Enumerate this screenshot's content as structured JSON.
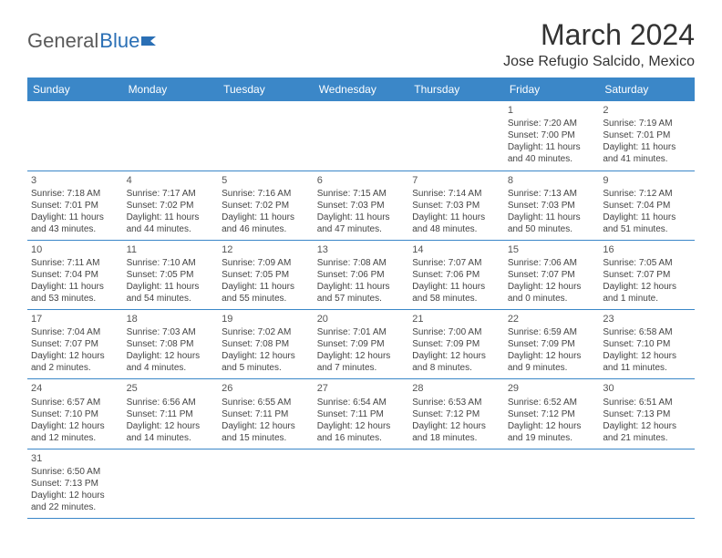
{
  "logo": {
    "first": "General",
    "second": "Blue"
  },
  "title": "March 2024",
  "location": "Jose Refugio Salcido, Mexico",
  "colors": {
    "header_bg": "#3b87c8",
    "header_fg": "#ffffff",
    "rule": "#3b87c8",
    "text": "#444444",
    "logo_blue": "#2a6fb5",
    "logo_gray": "#5a5a5a"
  },
  "weekdays": [
    "Sunday",
    "Monday",
    "Tuesday",
    "Wednesday",
    "Thursday",
    "Friday",
    "Saturday"
  ],
  "weeks": [
    [
      null,
      null,
      null,
      null,
      null,
      {
        "d": "1",
        "sr": "7:20 AM",
        "ss": "7:00 PM",
        "dl1": "11 hours",
        "dl2": "and 40 minutes."
      },
      {
        "d": "2",
        "sr": "7:19 AM",
        "ss": "7:01 PM",
        "dl1": "11 hours",
        "dl2": "and 41 minutes."
      }
    ],
    [
      {
        "d": "3",
        "sr": "7:18 AM",
        "ss": "7:01 PM",
        "dl1": "11 hours",
        "dl2": "and 43 minutes."
      },
      {
        "d": "4",
        "sr": "7:17 AM",
        "ss": "7:02 PM",
        "dl1": "11 hours",
        "dl2": "and 44 minutes."
      },
      {
        "d": "5",
        "sr": "7:16 AM",
        "ss": "7:02 PM",
        "dl1": "11 hours",
        "dl2": "and 46 minutes."
      },
      {
        "d": "6",
        "sr": "7:15 AM",
        "ss": "7:03 PM",
        "dl1": "11 hours",
        "dl2": "and 47 minutes."
      },
      {
        "d": "7",
        "sr": "7:14 AM",
        "ss": "7:03 PM",
        "dl1": "11 hours",
        "dl2": "and 48 minutes."
      },
      {
        "d": "8",
        "sr": "7:13 AM",
        "ss": "7:03 PM",
        "dl1": "11 hours",
        "dl2": "and 50 minutes."
      },
      {
        "d": "9",
        "sr": "7:12 AM",
        "ss": "7:04 PM",
        "dl1": "11 hours",
        "dl2": "and 51 minutes."
      }
    ],
    [
      {
        "d": "10",
        "sr": "7:11 AM",
        "ss": "7:04 PM",
        "dl1": "11 hours",
        "dl2": "and 53 minutes."
      },
      {
        "d": "11",
        "sr": "7:10 AM",
        "ss": "7:05 PM",
        "dl1": "11 hours",
        "dl2": "and 54 minutes."
      },
      {
        "d": "12",
        "sr": "7:09 AM",
        "ss": "7:05 PM",
        "dl1": "11 hours",
        "dl2": "and 55 minutes."
      },
      {
        "d": "13",
        "sr": "7:08 AM",
        "ss": "7:06 PM",
        "dl1": "11 hours",
        "dl2": "and 57 minutes."
      },
      {
        "d": "14",
        "sr": "7:07 AM",
        "ss": "7:06 PM",
        "dl1": "11 hours",
        "dl2": "and 58 minutes."
      },
      {
        "d": "15",
        "sr": "7:06 AM",
        "ss": "7:07 PM",
        "dl1": "12 hours",
        "dl2": "and 0 minutes."
      },
      {
        "d": "16",
        "sr": "7:05 AM",
        "ss": "7:07 PM",
        "dl1": "12 hours",
        "dl2": "and 1 minute."
      }
    ],
    [
      {
        "d": "17",
        "sr": "7:04 AM",
        "ss": "7:07 PM",
        "dl1": "12 hours",
        "dl2": "and 2 minutes."
      },
      {
        "d": "18",
        "sr": "7:03 AM",
        "ss": "7:08 PM",
        "dl1": "12 hours",
        "dl2": "and 4 minutes."
      },
      {
        "d": "19",
        "sr": "7:02 AM",
        "ss": "7:08 PM",
        "dl1": "12 hours",
        "dl2": "and 5 minutes."
      },
      {
        "d": "20",
        "sr": "7:01 AM",
        "ss": "7:09 PM",
        "dl1": "12 hours",
        "dl2": "and 7 minutes."
      },
      {
        "d": "21",
        "sr": "7:00 AM",
        "ss": "7:09 PM",
        "dl1": "12 hours",
        "dl2": "and 8 minutes."
      },
      {
        "d": "22",
        "sr": "6:59 AM",
        "ss": "7:09 PM",
        "dl1": "12 hours",
        "dl2": "and 9 minutes."
      },
      {
        "d": "23",
        "sr": "6:58 AM",
        "ss": "7:10 PM",
        "dl1": "12 hours",
        "dl2": "and 11 minutes."
      }
    ],
    [
      {
        "d": "24",
        "sr": "6:57 AM",
        "ss": "7:10 PM",
        "dl1": "12 hours",
        "dl2": "and 12 minutes."
      },
      {
        "d": "25",
        "sr": "6:56 AM",
        "ss": "7:11 PM",
        "dl1": "12 hours",
        "dl2": "and 14 minutes."
      },
      {
        "d": "26",
        "sr": "6:55 AM",
        "ss": "7:11 PM",
        "dl1": "12 hours",
        "dl2": "and 15 minutes."
      },
      {
        "d": "27",
        "sr": "6:54 AM",
        "ss": "7:11 PM",
        "dl1": "12 hours",
        "dl2": "and 16 minutes."
      },
      {
        "d": "28",
        "sr": "6:53 AM",
        "ss": "7:12 PM",
        "dl1": "12 hours",
        "dl2": "and 18 minutes."
      },
      {
        "d": "29",
        "sr": "6:52 AM",
        "ss": "7:12 PM",
        "dl1": "12 hours",
        "dl2": "and 19 minutes."
      },
      {
        "d": "30",
        "sr": "6:51 AM",
        "ss": "7:13 PM",
        "dl1": "12 hours",
        "dl2": "and 21 minutes."
      }
    ],
    [
      {
        "d": "31",
        "sr": "6:50 AM",
        "ss": "7:13 PM",
        "dl1": "12 hours",
        "dl2": "and 22 minutes."
      },
      null,
      null,
      null,
      null,
      null,
      null
    ]
  ],
  "labels": {
    "sunrise": "Sunrise: ",
    "sunset": "Sunset: ",
    "daylight": "Daylight: "
  }
}
